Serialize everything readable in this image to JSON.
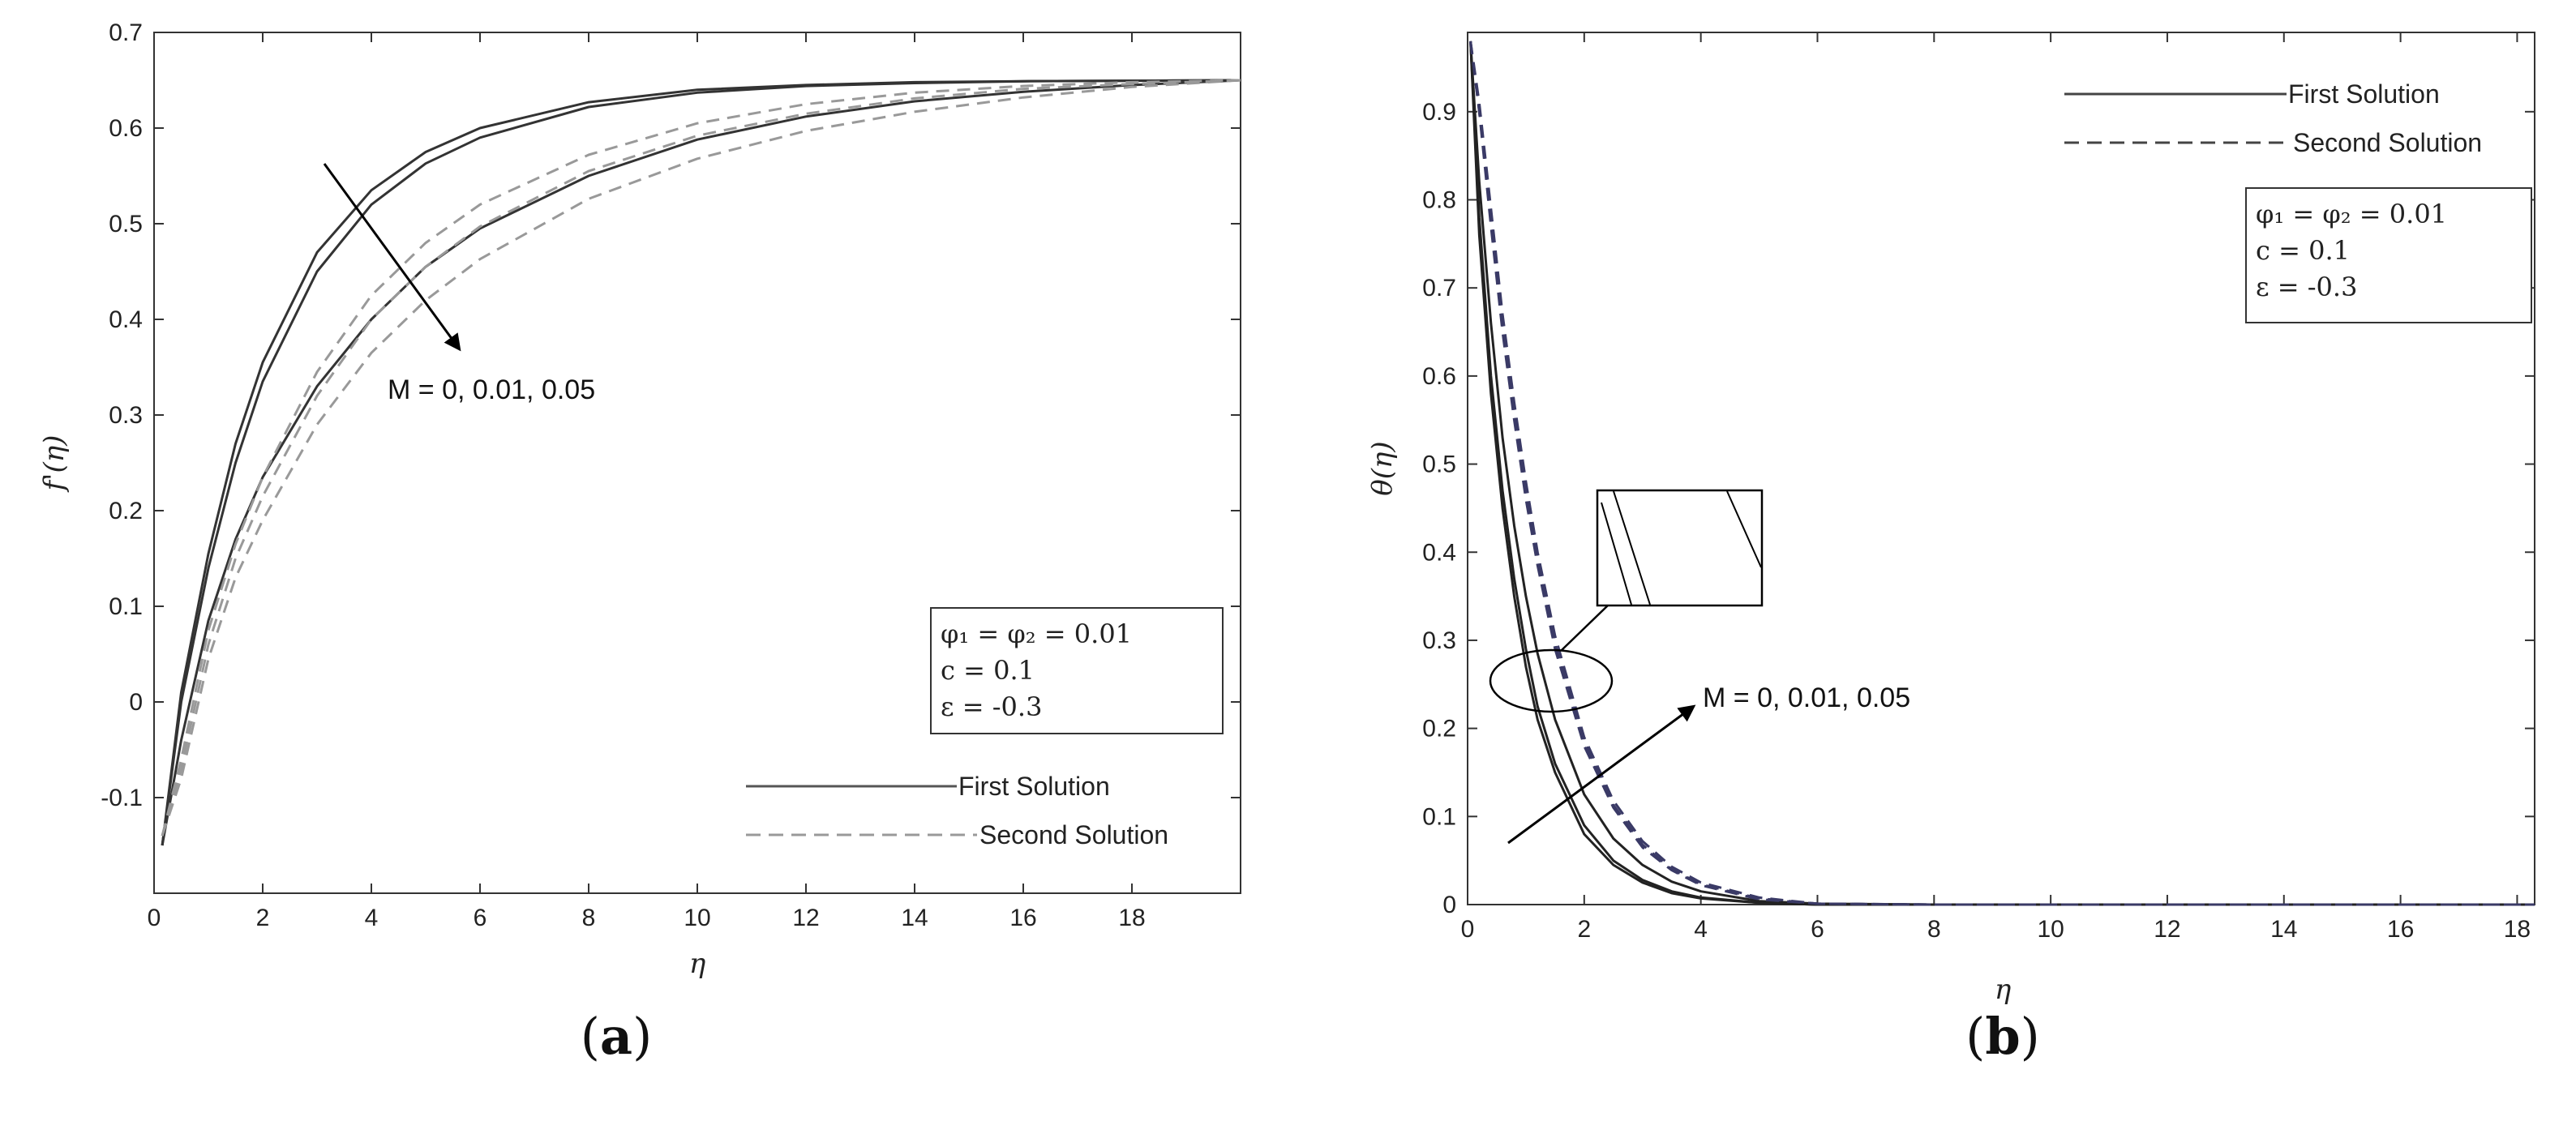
{
  "chart_data": [
    {
      "panel": "(a)",
      "panel_letter": "a",
      "type": "line",
      "ylabel": "f'(η)",
      "xlabel": "η",
      "xlim": [
        0,
        20
      ],
      "ylim": [
        -0.2,
        0.7
      ],
      "xticks": [
        0,
        2,
        4,
        6,
        8,
        10,
        12,
        14,
        16,
        18
      ],
      "yticks": [
        -0.1,
        0,
        0.1,
        0.2,
        0.3,
        0.4,
        0.5,
        0.6,
        0.7
      ],
      "grid": false,
      "legend": {
        "placement": "bottom-right",
        "entries": [
          {
            "label": "First Solution",
            "style": "solid",
            "color": "#444444"
          },
          {
            "label": "Second Solution",
            "style": "dashed",
            "color": "#888888"
          }
        ]
      },
      "params": [
        "φ₁ = φ₂ = 0.01",
        "c = 0.1",
        "ε = -0.3"
      ],
      "annotation": "M = 0, 0.01, 0.05",
      "series": [
        {
          "style": "solid",
          "color": "#333333",
          "x": [
            0.15,
            0.5,
            1,
            1.5,
            2,
            3,
            4,
            5,
            6,
            8,
            10,
            12,
            14,
            16,
            18,
            20
          ],
          "y": [
            -0.15,
            0.01,
            0.155,
            0.27,
            0.355,
            0.47,
            0.535,
            0.575,
            0.6,
            0.627,
            0.64,
            0.645,
            0.648,
            0.649,
            0.6495,
            0.65
          ]
        },
        {
          "style": "solid",
          "color": "#333333",
          "x": [
            0.15,
            0.5,
            1,
            1.5,
            2,
            3,
            4,
            5,
            6,
            8,
            10,
            12,
            14,
            16,
            18,
            20
          ],
          "y": [
            -0.15,
            0.0,
            0.14,
            0.25,
            0.335,
            0.45,
            0.52,
            0.563,
            0.59,
            0.622,
            0.637,
            0.644,
            0.647,
            0.649,
            0.6495,
            0.65
          ]
        },
        {
          "style": "solid",
          "color": "#333333",
          "x": [
            0.15,
            0.5,
            1,
            1.5,
            2,
            3,
            4,
            5,
            6,
            8,
            10,
            12,
            14,
            16,
            18,
            20
          ],
          "y": [
            -0.15,
            -0.04,
            0.085,
            0.17,
            0.235,
            0.33,
            0.4,
            0.455,
            0.495,
            0.55,
            0.588,
            0.612,
            0.628,
            0.638,
            0.645,
            0.65
          ]
        },
        {
          "style": "dashed",
          "color": "#999999",
          "x": [
            0.15,
            0.5,
            1,
            1.5,
            2,
            3,
            4,
            5,
            6,
            8,
            10,
            12,
            14,
            16,
            18,
            20
          ],
          "y": [
            -0.14,
            -0.06,
            0.075,
            0.165,
            0.235,
            0.345,
            0.425,
            0.48,
            0.52,
            0.572,
            0.605,
            0.625,
            0.637,
            0.644,
            0.648,
            0.65
          ]
        },
        {
          "style": "dashed",
          "color": "#999999",
          "x": [
            0.15,
            0.5,
            1,
            1.5,
            2,
            3,
            4,
            5,
            6,
            8,
            10,
            12,
            14,
            16,
            18,
            20
          ],
          "y": [
            -0.14,
            -0.07,
            0.06,
            0.15,
            0.215,
            0.32,
            0.4,
            0.455,
            0.497,
            0.555,
            0.592,
            0.615,
            0.631,
            0.641,
            0.646,
            0.65
          ]
        },
        {
          "style": "dashed",
          "color": "#999999",
          "x": [
            0.15,
            0.5,
            1,
            1.5,
            2,
            3,
            4,
            5,
            6,
            8,
            10,
            12,
            14,
            16,
            18,
            20
          ],
          "y": [
            -0.14,
            -0.08,
            0.045,
            0.13,
            0.19,
            0.29,
            0.365,
            0.42,
            0.463,
            0.526,
            0.568,
            0.597,
            0.617,
            0.632,
            0.643,
            0.65
          ]
        }
      ]
    },
    {
      "panel": "(b)",
      "panel_letter": "b",
      "type": "line",
      "ylabel": "θ(η)",
      "xlabel": "η",
      "xlim": [
        0,
        18.3
      ],
      "ylim": [
        0,
        0.99
      ],
      "xticks": [
        0,
        2,
        4,
        6,
        8,
        10,
        12,
        14,
        16,
        18
      ],
      "yticks": [
        0,
        0.1,
        0.2,
        0.3,
        0.4,
        0.5,
        0.6,
        0.7,
        0.8,
        0.9
      ],
      "grid": false,
      "legend": {
        "placement": "top-right",
        "entries": [
          {
            "label": "First Solution",
            "style": "solid",
            "color": "#444444"
          },
          {
            "label": "Second Solution",
            "style": "dashed",
            "color": "#444444"
          }
        ]
      },
      "params": [
        "φ₁ = φ₂ = 0.01",
        "c = 0.1",
        "ε = -0.3"
      ],
      "annotation": "M = 0, 0.01, 0.05",
      "series": [
        {
          "style": "solid",
          "color": "#222222",
          "x": [
            0.05,
            0.2,
            0.4,
            0.6,
            0.8,
            1,
            1.2,
            1.5,
            2,
            2.5,
            3,
            3.5,
            4,
            5,
            6,
            8,
            18.3
          ],
          "y": [
            0.98,
            0.76,
            0.58,
            0.45,
            0.35,
            0.27,
            0.21,
            0.15,
            0.08,
            0.045,
            0.025,
            0.013,
            0.007,
            0.002,
            0,
            0,
            0
          ]
        },
        {
          "style": "solid",
          "color": "#222222",
          "x": [
            0.05,
            0.2,
            0.4,
            0.6,
            0.8,
            1,
            1.2,
            1.5,
            2,
            2.5,
            3,
            3.5,
            4,
            5,
            6,
            8,
            18.3
          ],
          "y": [
            0.98,
            0.78,
            0.6,
            0.47,
            0.37,
            0.29,
            0.225,
            0.16,
            0.09,
            0.05,
            0.028,
            0.015,
            0.008,
            0.002,
            0,
            0,
            0
          ]
        },
        {
          "style": "solid",
          "color": "#222222",
          "x": [
            0.05,
            0.2,
            0.4,
            0.6,
            0.8,
            1,
            1.2,
            1.5,
            2,
            2.5,
            3,
            3.5,
            4,
            5,
            6,
            8,
            18.3
          ],
          "y": [
            0.98,
            0.82,
            0.66,
            0.53,
            0.43,
            0.35,
            0.285,
            0.21,
            0.125,
            0.075,
            0.045,
            0.026,
            0.015,
            0.004,
            0.001,
            0,
            0
          ]
        },
        {
          "style": "dashed",
          "color": "#3a3a66",
          "x": [
            0.05,
            0.2,
            0.4,
            0.6,
            0.8,
            1,
            1.2,
            1.5,
            2,
            2.5,
            3,
            3.5,
            4,
            5,
            6,
            8,
            18.3
          ],
          "y": [
            0.98,
            0.9,
            0.77,
            0.65,
            0.55,
            0.46,
            0.385,
            0.29,
            0.18,
            0.11,
            0.065,
            0.039,
            0.022,
            0.006,
            0.001,
            0,
            0
          ]
        },
        {
          "style": "dashed",
          "color": "#3a3a66",
          "x": [
            0.05,
            0.2,
            0.4,
            0.6,
            0.8,
            1,
            1.2,
            1.5,
            2,
            2.5,
            3,
            3.5,
            4,
            5,
            6,
            8,
            18.3
          ],
          "y": [
            0.98,
            0.9,
            0.78,
            0.66,
            0.56,
            0.47,
            0.39,
            0.295,
            0.185,
            0.113,
            0.068,
            0.04,
            0.023,
            0.007,
            0.001,
            0,
            0
          ]
        },
        {
          "style": "dashed",
          "color": "#3a3a66",
          "x": [
            0.05,
            0.2,
            0.4,
            0.6,
            0.8,
            1,
            1.2,
            1.5,
            2,
            2.5,
            3,
            3.5,
            4,
            5,
            6,
            8,
            18.3
          ],
          "y": [
            0.98,
            0.91,
            0.79,
            0.67,
            0.57,
            0.48,
            0.4,
            0.305,
            0.19,
            0.118,
            0.072,
            0.043,
            0.025,
            0.008,
            0.001,
            0,
            0
          ]
        }
      ]
    }
  ]
}
